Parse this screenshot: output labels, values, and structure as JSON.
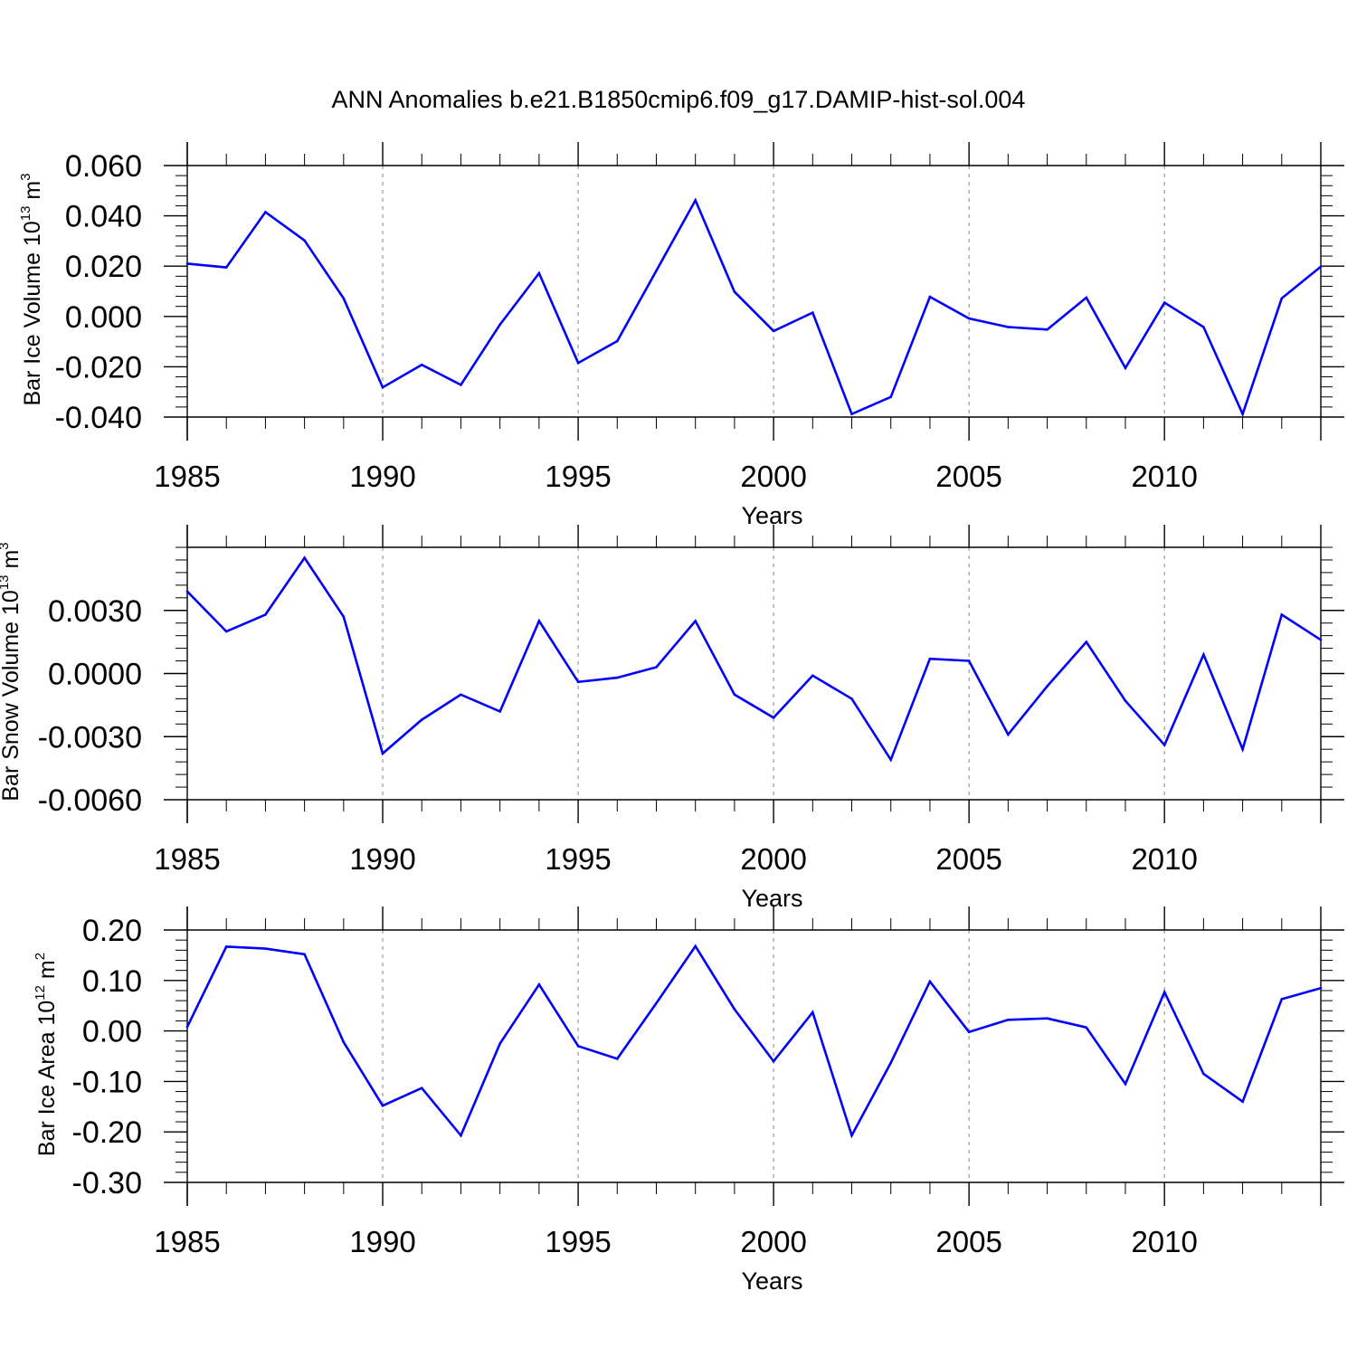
{
  "title": "ANN Anomalies b.e21.B1850cmip6.f09_g17.DAMIP-hist-sol.004",
  "colors": {
    "series": "#0000ff",
    "axes": "#000000",
    "grid": "#999999"
  },
  "chart_data": [
    {
      "type": "line",
      "ylabel": {
        "main": "Bar Ice Volume 10",
        "exp1": "13",
        "unit": " m",
        "exp2": "3"
      },
      "xlabel": "Years",
      "xlim": [
        1985,
        2014
      ],
      "ylim": [
        -0.04,
        0.06
      ],
      "yticks": [
        -0.04,
        -0.02,
        0.0,
        0.02,
        0.04,
        0.06
      ],
      "ytick_labels": [
        "-0.040",
        "-0.020",
        "0.000",
        "0.020",
        "0.040",
        "0.060"
      ],
      "xticks": [
        1985,
        1990,
        1995,
        2000,
        2005,
        2010
      ],
      "xtick_labels": [
        "1985",
        "1990",
        "1995",
        "2000",
        "2005",
        "2010"
      ],
      "grid_x": [
        1990,
        1995,
        2000,
        2005,
        2010
      ],
      "series": [
        {
          "name": "Bar Ice Volume",
          "x": [
            1985,
            1986,
            1987,
            1988,
            1989,
            1990,
            1991,
            1992,
            1993,
            1994,
            1995,
            1996,
            1997,
            1998,
            1999,
            2000,
            2001,
            2002,
            2003,
            2004,
            2005,
            2006,
            2007,
            2008,
            2009,
            2010,
            2011,
            2012,
            2013,
            2014
          ],
          "values": [
            0.021,
            0.0195,
            0.0415,
            0.0302,
            0.0072,
            -0.0282,
            -0.0192,
            -0.0272,
            -0.0032,
            0.0172,
            -0.0185,
            -0.0098,
            0.0182,
            0.0462,
            0.0098,
            -0.0058,
            0.0015,
            -0.0388,
            -0.032,
            0.0078,
            -0.0008,
            -0.0042,
            -0.0052,
            0.0075,
            -0.0205,
            0.0055,
            -0.0042,
            -0.0388,
            0.0072,
            0.0198
          ]
        }
      ]
    },
    {
      "type": "line",
      "ylabel": {
        "main": "Bar Snow Volume 10",
        "exp1": "13",
        "unit": " m",
        "exp2": "3"
      },
      "xlabel": "Years",
      "xlim": [
        1985,
        2014
      ],
      "ylim": [
        -0.006,
        0.006
      ],
      "yticks": [
        -0.006,
        -0.003,
        0.0,
        0.003
      ],
      "ytick_labels": [
        "-0.0060",
        "-0.0030",
        "0.0000",
        "0.0030"
      ],
      "xticks": [
        1985,
        1990,
        1995,
        2000,
        2005,
        2010
      ],
      "xtick_labels": [
        "1985",
        "1990",
        "1995",
        "2000",
        "2005",
        "2010"
      ],
      "grid_x": [
        1990,
        1995,
        2000,
        2005,
        2010
      ],
      "series": [
        {
          "name": "Bar Snow Volume",
          "x": [
            1985,
            1986,
            1987,
            1988,
            1989,
            1990,
            1991,
            1992,
            1993,
            1994,
            1995,
            1996,
            1997,
            1998,
            1999,
            2000,
            2001,
            2002,
            2003,
            2004,
            2005,
            2006,
            2007,
            2008,
            2009,
            2010,
            2011,
            2012,
            2013,
            2014
          ],
          "values": [
            0.0039,
            0.002,
            0.0028,
            0.0055,
            0.0027,
            -0.0038,
            -0.0022,
            -0.001,
            -0.0018,
            0.0025,
            -0.0004,
            -0.0002,
            0.0003,
            0.0025,
            -0.001,
            -0.0021,
            -0.0001,
            -0.0012,
            -0.0041,
            0.0007,
            0.0006,
            -0.0029,
            -0.0006,
            0.0015,
            -0.0013,
            -0.0034,
            0.0009,
            -0.0036,
            0.0028,
            0.0016
          ]
        }
      ]
    },
    {
      "type": "line",
      "ylabel": {
        "main": "Bar Ice Area 10",
        "exp1": "12",
        "unit": " m",
        "exp2": "2"
      },
      "xlabel": "Years",
      "xlim": [
        1985,
        2014
      ],
      "ylim": [
        -0.3,
        0.2
      ],
      "yticks": [
        -0.3,
        -0.2,
        -0.1,
        0.0,
        0.1,
        0.2
      ],
      "ytick_labels": [
        "-0.30",
        "-0.20",
        "-0.10",
        "0.00",
        "0.10",
        "0.20"
      ],
      "xticks": [
        1985,
        1990,
        1995,
        2000,
        2005,
        2010
      ],
      "xtick_labels": [
        "1985",
        "1990",
        "1995",
        "2000",
        "2005",
        "2010"
      ],
      "grid_x": [
        1990,
        1995,
        2000,
        2005,
        2010
      ],
      "series": [
        {
          "name": "Bar Ice Area",
          "x": [
            1985,
            1986,
            1987,
            1988,
            1989,
            1990,
            1991,
            1992,
            1993,
            1994,
            1995,
            1996,
            1997,
            1998,
            1999,
            2000,
            2001,
            2002,
            2003,
            2004,
            2005,
            2006,
            2007,
            2008,
            2009,
            2010,
            2011,
            2012,
            2013,
            2014
          ],
          "values": [
            0.008,
            0.167,
            0.163,
            0.152,
            -0.022,
            -0.148,
            -0.113,
            -0.207,
            -0.025,
            0.092,
            -0.03,
            -0.055,
            0.055,
            0.168,
            0.043,
            -0.06,
            0.037,
            -0.207,
            -0.063,
            0.098,
            -0.002,
            0.022,
            0.025,
            0.007,
            -0.105,
            0.077,
            -0.085,
            -0.14,
            0.063,
            0.085
          ]
        }
      ]
    }
  ]
}
